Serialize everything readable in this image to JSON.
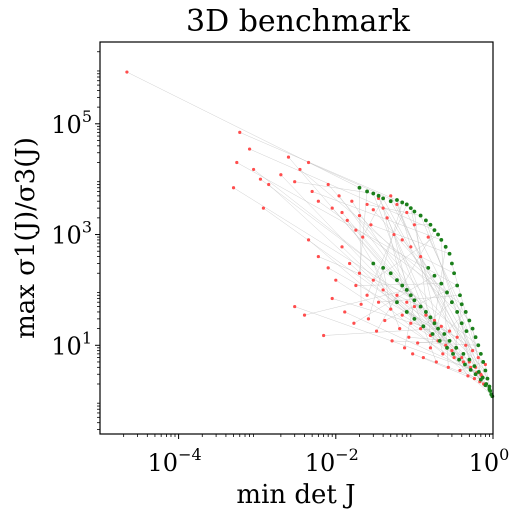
{
  "chart_data": {
    "type": "scatter",
    "title": "3D benchmark",
    "xlabel": "min det J",
    "ylabel": "max σ1(J)/σ3(J)",
    "x_scale": "log",
    "y_scale": "log",
    "xlim": [
      1e-05,
      1
    ],
    "ylim": [
      0.25,
      3000000
    ],
    "x_ticks": [
      {
        "value": 0.0001,
        "base": "10",
        "exp": "−4"
      },
      {
        "value": 0.01,
        "base": "10",
        "exp": "−2"
      },
      {
        "value": 1,
        "base": "10",
        "exp": "0"
      }
    ],
    "y_ticks": [
      {
        "value": 10,
        "base": "10",
        "exp": "1"
      },
      {
        "value": 1000,
        "base": "10",
        "exp": "3"
      },
      {
        "value": 100000,
        "base": "10",
        "exp": "5"
      }
    ],
    "grid": false,
    "legend": "none",
    "colors": {
      "before": "#ff4d4d",
      "after": "#1a7f1a",
      "connector": "#bcbcbc"
    },
    "series": [
      {
        "color": "#ff4d4d",
        "points": [
          [
            2.2e-05,
            860000
          ],
          [
            0.0006,
            70000
          ],
          [
            0.0008,
            35000
          ],
          [
            0.00055,
            20000
          ],
          [
            0.0009,
            15000
          ],
          [
            0.0011,
            10000
          ],
          [
            0.0005,
            7000
          ],
          [
            0.0012,
            3000
          ],
          [
            0.0014,
            8000
          ],
          [
            0.002,
            12000
          ],
          [
            0.0025,
            25000
          ],
          [
            0.0035,
            15000
          ],
          [
            0.003,
            9000
          ],
          [
            0.0045,
            20000
          ],
          [
            0.005,
            6000
          ],
          [
            0.006,
            4000
          ],
          [
            0.008,
            8000
          ],
          [
            0.009,
            3000
          ],
          [
            0.011,
            5000
          ],
          [
            0.012,
            2500
          ],
          [
            0.014,
            1800
          ],
          [
            0.016,
            4000
          ],
          [
            0.018,
            1200
          ],
          [
            0.02,
            2200
          ],
          [
            0.022,
            900
          ],
          [
            0.025,
            3500
          ],
          [
            0.028,
            1500
          ],
          [
            0.03,
            2800
          ],
          [
            0.035,
            4500
          ],
          [
            0.04,
            3000
          ],
          [
            0.045,
            2000
          ],
          [
            0.05,
            5000
          ],
          [
            0.055,
            1000
          ],
          [
            0.06,
            3500
          ],
          [
            0.07,
            800
          ],
          [
            0.08,
            2500
          ],
          [
            0.09,
            600
          ],
          [
            0.1,
            1500
          ],
          [
            0.12,
            400
          ],
          [
            0.15,
            900
          ],
          [
            0.0045,
            800
          ],
          [
            0.006,
            400
          ],
          [
            0.008,
            250
          ],
          [
            0.01,
            150
          ],
          [
            0.012,
            600
          ],
          [
            0.015,
            300
          ],
          [
            0.018,
            120
          ],
          [
            0.02,
            200
          ],
          [
            0.025,
            80
          ],
          [
            0.03,
            150
          ],
          [
            0.035,
            60
          ],
          [
            0.04,
            100
          ],
          [
            0.05,
            45
          ],
          [
            0.06,
            80
          ],
          [
            0.07,
            35
          ],
          [
            0.08,
            60
          ],
          [
            0.09,
            25
          ],
          [
            0.1,
            50
          ],
          [
            0.12,
            20
          ],
          [
            0.14,
            35
          ],
          [
            0.16,
            15
          ],
          [
            0.18,
            28
          ],
          [
            0.2,
            12
          ],
          [
            0.22,
            22
          ],
          [
            0.25,
            10
          ],
          [
            0.28,
            18
          ],
          [
            0.3,
            8
          ],
          [
            0.35,
            14
          ],
          [
            0.4,
            6
          ],
          [
            0.45,
            10
          ],
          [
            0.5,
            5
          ],
          [
            0.55,
            8
          ],
          [
            0.6,
            4
          ],
          [
            0.65,
            6
          ],
          [
            0.7,
            3
          ],
          [
            0.8,
            4.5
          ],
          [
            0.004,
            35
          ],
          [
            0.007,
            15
          ],
          [
            0.003,
            50
          ],
          [
            0.009,
            70
          ],
          [
            0.013,
            40
          ],
          [
            0.017,
            25
          ],
          [
            0.021,
            55
          ],
          [
            0.026,
            30
          ],
          [
            0.033,
            18
          ],
          [
            0.042,
            28
          ],
          [
            0.052,
            12
          ],
          [
            0.065,
            20
          ],
          [
            0.075,
            9
          ],
          [
            0.085,
            14
          ],
          [
            0.095,
            7
          ],
          [
            0.11,
            11
          ],
          [
            0.13,
            6
          ],
          [
            0.16,
            9
          ],
          [
            0.19,
            5
          ],
          [
            0.23,
            7
          ],
          [
            0.27,
            4
          ],
          [
            0.32,
            6
          ],
          [
            0.38,
            3.5
          ],
          [
            0.42,
            5
          ],
          [
            0.48,
            2.8
          ],
          [
            0.52,
            4
          ],
          [
            0.58,
            2.5
          ],
          [
            0.62,
            3.2
          ],
          [
            0.68,
            2.2
          ],
          [
            0.72,
            2.8
          ],
          [
            0.76,
            2
          ],
          [
            0.85,
            2.5
          ]
        ]
      },
      {
        "color": "#1a7f1a",
        "points": [
          [
            0.02,
            7000
          ],
          [
            0.025,
            6000
          ],
          [
            0.03,
            5500
          ],
          [
            0.035,
            5000
          ],
          [
            0.04,
            4500
          ],
          [
            0.05,
            4000
          ],
          [
            0.06,
            4200
          ],
          [
            0.07,
            3800
          ],
          [
            0.08,
            3500
          ],
          [
            0.09,
            3000
          ],
          [
            0.1,
            2600
          ],
          [
            0.12,
            2200
          ],
          [
            0.14,
            1800
          ],
          [
            0.16,
            1500
          ],
          [
            0.18,
            1200
          ],
          [
            0.2,
            1000
          ],
          [
            0.22,
            800
          ],
          [
            0.25,
            600
          ],
          [
            0.28,
            450
          ],
          [
            0.3,
            300
          ],
          [
            0.32,
            200
          ],
          [
            0.35,
            120
          ],
          [
            0.38,
            80
          ],
          [
            0.4,
            55
          ],
          [
            0.45,
            40
          ],
          [
            0.5,
            28
          ],
          [
            0.55,
            20
          ],
          [
            0.6,
            14
          ],
          [
            0.65,
            10
          ],
          [
            0.7,
            7
          ],
          [
            0.75,
            5
          ],
          [
            0.8,
            3.5
          ],
          [
            0.85,
            2.5
          ],
          [
            0.9,
            1.8
          ],
          [
            0.95,
            1.3
          ],
          [
            0.03,
            300
          ],
          [
            0.04,
            250
          ],
          [
            0.05,
            200
          ],
          [
            0.06,
            150
          ],
          [
            0.07,
            120
          ],
          [
            0.08,
            100
          ],
          [
            0.09,
            80
          ],
          [
            0.1,
            65
          ],
          [
            0.12,
            50
          ],
          [
            0.14,
            40
          ],
          [
            0.16,
            32
          ],
          [
            0.18,
            25
          ],
          [
            0.2,
            20
          ],
          [
            0.24,
            16
          ],
          [
            0.28,
            12
          ],
          [
            0.34,
            9
          ],
          [
            0.42,
            7
          ],
          [
            0.5,
            5.5
          ],
          [
            0.58,
            4.2
          ],
          [
            0.66,
            3.3
          ],
          [
            0.74,
            2.6
          ],
          [
            0.82,
            2
          ],
          [
            0.9,
            1.6
          ],
          [
            0.06,
            60
          ],
          [
            0.08,
            40
          ],
          [
            0.1,
            30
          ],
          [
            0.13,
            22
          ],
          [
            0.17,
            16
          ],
          [
            0.21,
            12
          ],
          [
            0.26,
            9
          ],
          [
            0.31,
            7
          ],
          [
            0.37,
            5.5
          ],
          [
            0.44,
            4.5
          ],
          [
            0.52,
            3.6
          ],
          [
            0.6,
            3
          ],
          [
            0.7,
            2.4
          ],
          [
            0.8,
            1.9
          ],
          [
            0.92,
            1.5
          ],
          [
            0.98,
            1.2
          ],
          [
            0.15,
            250
          ],
          [
            0.18,
            180
          ],
          [
            0.22,
            130
          ],
          [
            0.26,
            90
          ],
          [
            0.3,
            60
          ],
          [
            0.35,
            40
          ],
          [
            0.4,
            25
          ],
          [
            0.46,
            18
          ]
        ]
      }
    ]
  }
}
